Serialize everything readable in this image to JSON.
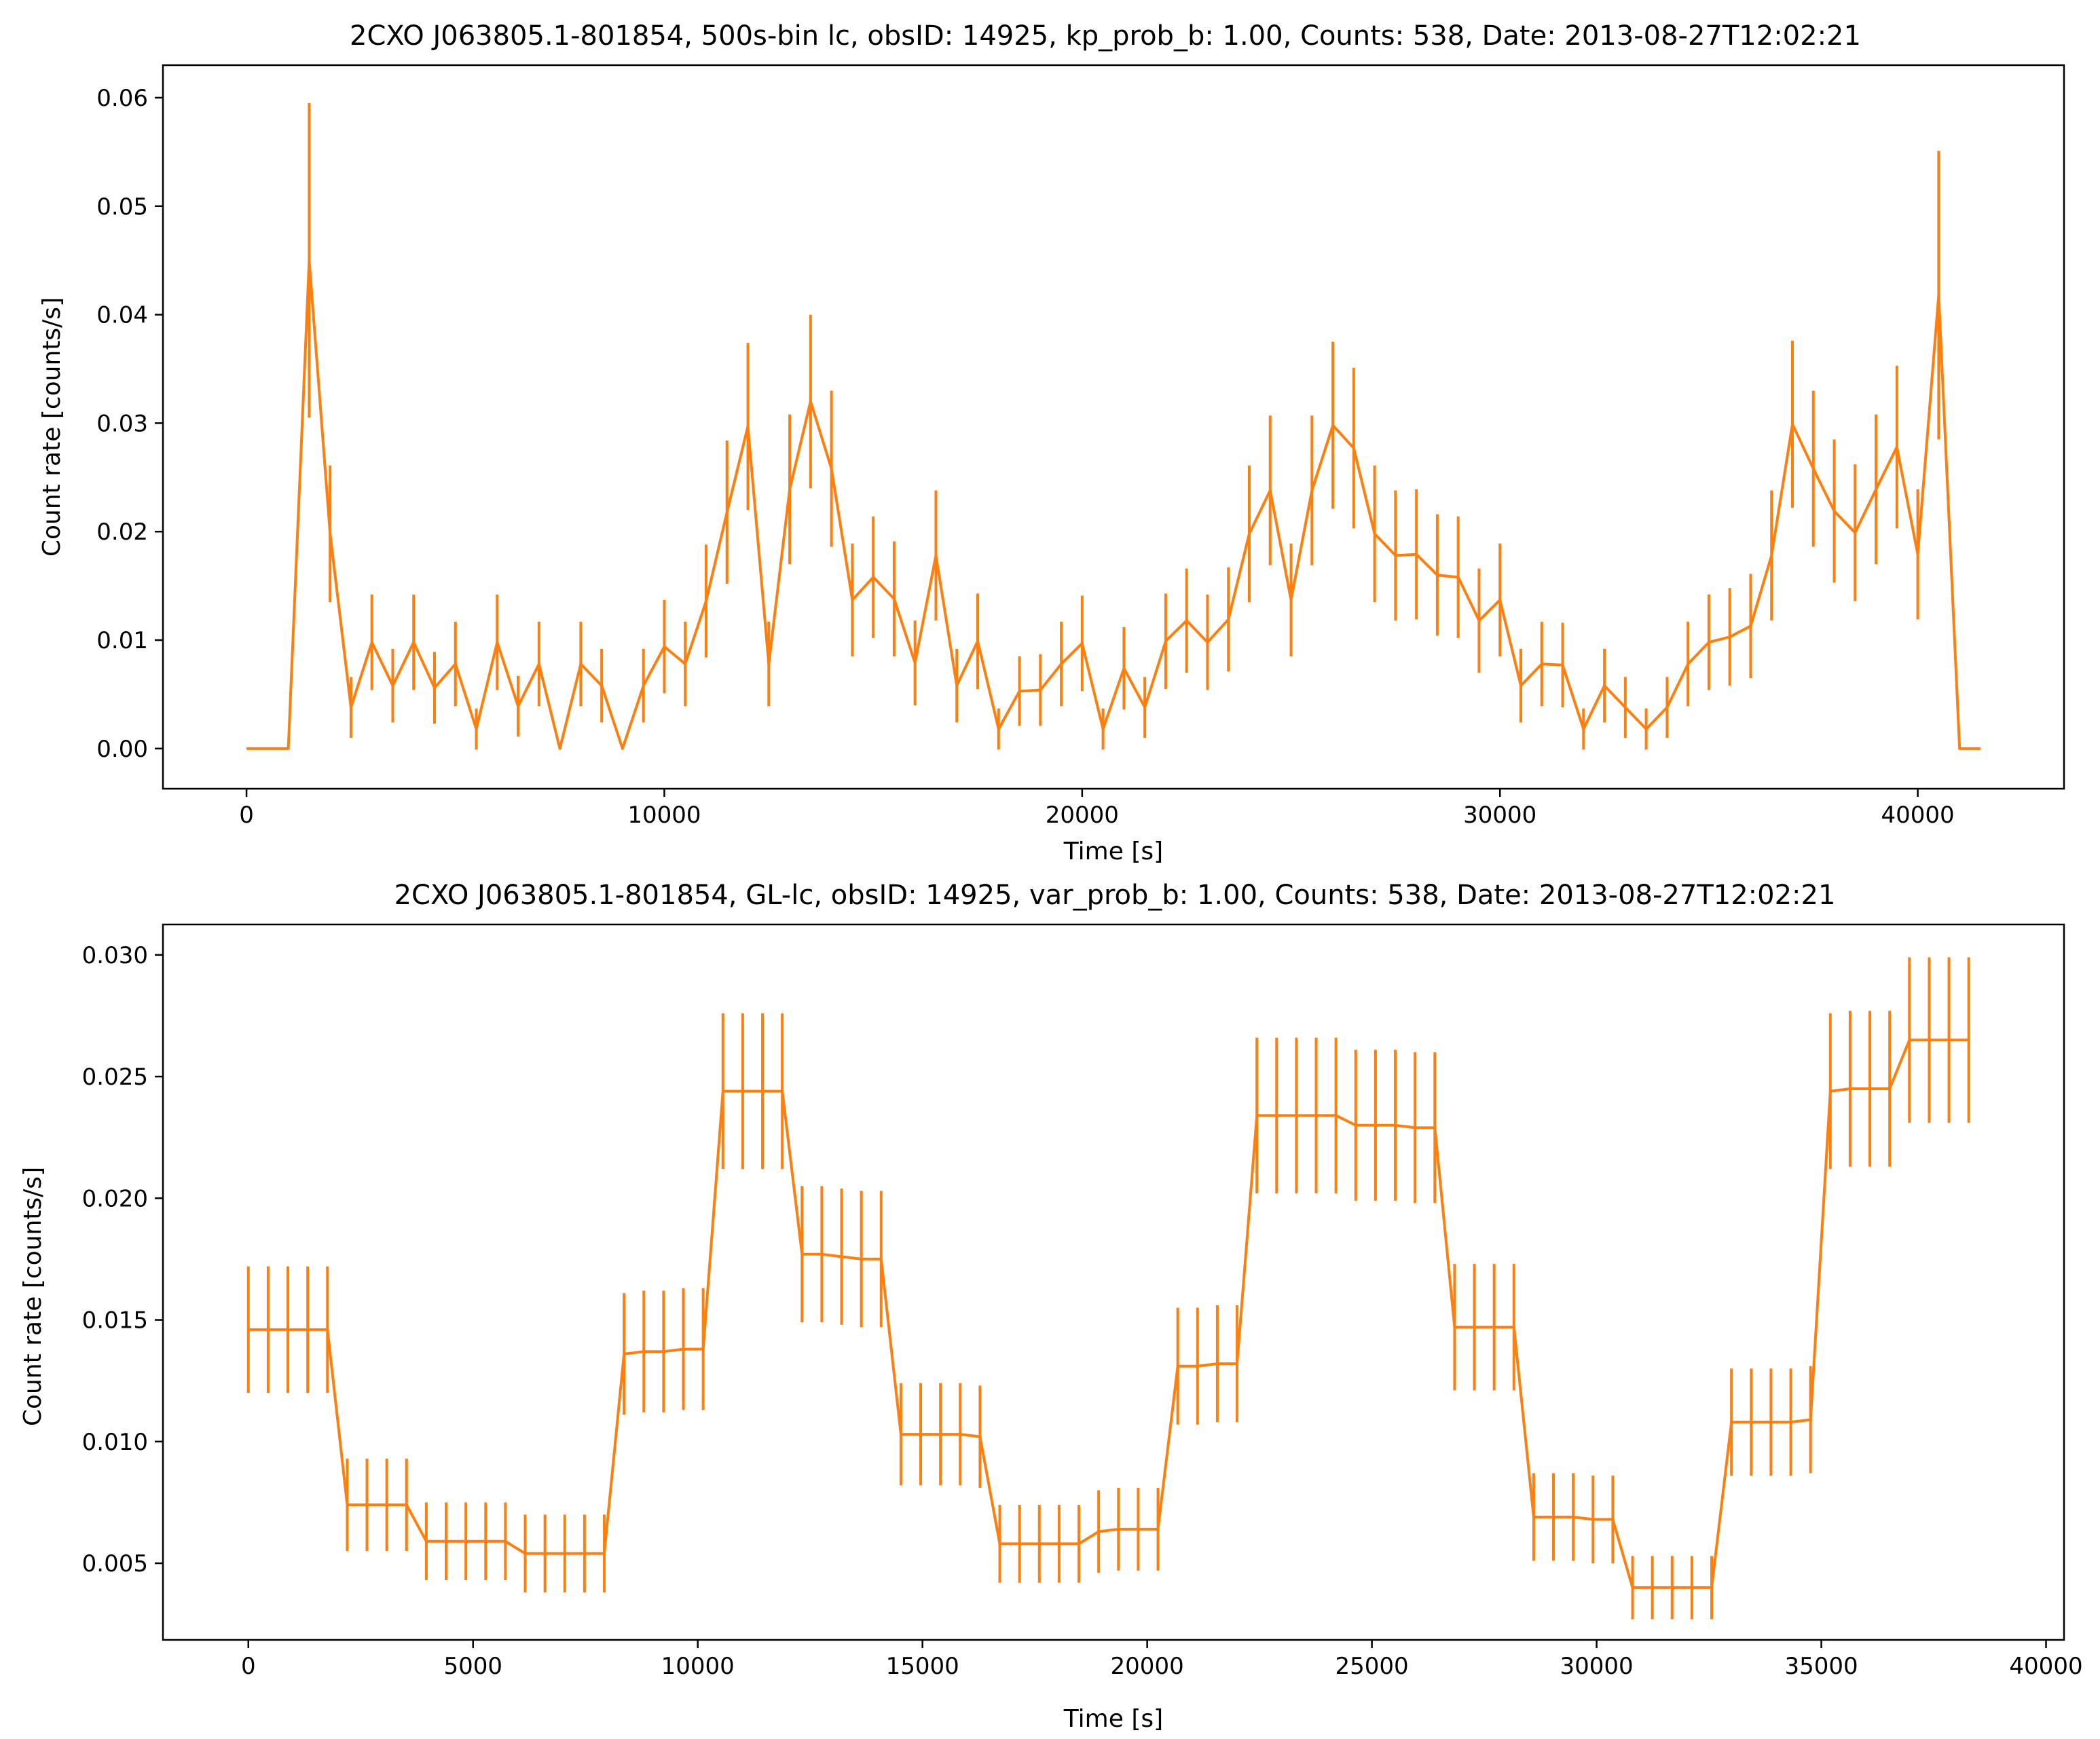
{
  "colors": {
    "series": "#ff7f0e",
    "axis": "#000000",
    "background": "#ffffff"
  },
  "chart_data": [
    {
      "type": "line",
      "title": "2CXO J063805.1-801854, 500s-bin lc, obsID: 14925, kp_prob_b: 1.00, Counts: 538, Date: 2013-08-27T12:02:21",
      "xlabel": "Time [s]",
      "ylabel": "Count rate [counts/s]",
      "xlim": [
        -2000,
        43500
      ],
      "ylim": [
        -0.0037,
        0.063
      ],
      "xticks": [
        0,
        10000,
        20000,
        30000,
        40000
      ],
      "xtick_labels": [
        "0",
        "10000",
        "20000",
        "30000",
        "40000"
      ],
      "yticks": [
        0,
        0.01,
        0.02,
        0.03,
        0.04,
        0.05,
        0.06
      ],
      "ytick_labels": [
        "0.00",
        "0.01",
        "0.02",
        "0.03",
        "0.04",
        "0.05",
        "0.06"
      ],
      "grid": false,
      "series": [
        {
          "x": [
            0,
            1000,
            1500,
            2000,
            2500,
            3000,
            3500,
            4000,
            4500,
            5000,
            5500,
            6000,
            6500,
            7000,
            7500,
            8000,
            8500,
            9000,
            9500,
            10000,
            10500,
            11000,
            11500,
            12000,
            12500,
            13000,
            13500,
            14000,
            14500,
            15000,
            15500,
            16000,
            16500,
            17000,
            17500,
            18000,
            18500,
            19000,
            19500,
            20000,
            20500,
            21000,
            21500,
            22000,
            22500,
            23000,
            23500,
            24000,
            24500,
            25000,
            25500,
            26000,
            26500,
            27000,
            27500,
            28000,
            28500,
            29000,
            29500,
            30000,
            30500,
            31000,
            31500,
            32000,
            32500,
            33000,
            33500,
            34000,
            34500,
            35000,
            35500,
            36000,
            36500,
            37000,
            37500,
            38000,
            38500,
            39000,
            39500,
            40000,
            40500,
            41000,
            41500
          ],
          "y": [
            0,
            0,
            0.045,
            0.0198,
            0.0038,
            0.0098,
            0.0058,
            0.0098,
            0.0056,
            0.0078,
            0.0018,
            0.0098,
            0.0039,
            0.0078,
            0,
            0.0078,
            0.0058,
            0,
            0.0058,
            0.0094,
            0.0078,
            0.0136,
            0.0218,
            0.0297,
            0.0078,
            0.0239,
            0.032,
            0.0258,
            0.0137,
            0.0158,
            0.0138,
            0.0079,
            0.0178,
            0.0058,
            0.0099,
            0.0018,
            0.0053,
            0.0054,
            0.0078,
            0.0097,
            0.0018,
            0.0074,
            0.0038,
            0.0099,
            0.0118,
            0.0098,
            0.0119,
            0.0198,
            0.0238,
            0.0137,
            0.0238,
            0.0298,
            0.0277,
            0.0198,
            0.0178,
            0.0179,
            0.016,
            0.0158,
            0.0118,
            0.0137,
            0.0058,
            0.0078,
            0.0077,
            0.0018,
            0.0058,
            0.0038,
            0.0018,
            0.0038,
            0.0078,
            0.0098,
            0.0103,
            0.0113,
            0.0178,
            0.0299,
            0.0258,
            0.0219,
            0.0199,
            0.0239,
            0.0278,
            0.0179,
            0.0418,
            0,
            0
          ],
          "err": [
            0,
            0,
            0.0145,
            0.0063,
            0.0028,
            0.0044,
            0.0034,
            0.0044,
            0.0033,
            0.0039,
            0.0019,
            0.0044,
            0.0028,
            0.0039,
            0,
            0.0039,
            0.0034,
            0,
            0.0034,
            0.0043,
            0.0039,
            0.0052,
            0.0066,
            0.0077,
            0.0039,
            0.0069,
            0.008,
            0.0072,
            0.0052,
            0.0056,
            0.0053,
            0.0039,
            0.006,
            0.0034,
            0.0044,
            0.0019,
            0.0032,
            0.0033,
            0.0039,
            0.0044,
            0.0019,
            0.0038,
            0.0028,
            0.0044,
            0.0048,
            0.0044,
            0.0048,
            0.0063,
            0.0069,
            0.0052,
            0.0069,
            0.0077,
            0.0074,
            0.0063,
            0.006,
            0.006,
            0.0056,
            0.0056,
            0.0048,
            0.0052,
            0.0034,
            0.0039,
            0.0039,
            0.0019,
            0.0034,
            0.0028,
            0.0019,
            0.0028,
            0.0039,
            0.0044,
            0.0045,
            0.0048,
            0.006,
            0.0077,
            0.0072,
            0.0066,
            0.0063,
            0.0069,
            0.0075,
            0.006,
            0.0133,
            0,
            0
          ]
        }
      ]
    },
    {
      "type": "line",
      "title": "2CXO J063805.1-801854, GL-lc, obsID: 14925, var_prob_b: 1.00, Counts: 538, Date: 2013-08-27T12:02:21",
      "xlabel": "Time [s]",
      "ylabel": "Count rate [counts/s]",
      "xlim": [
        -1900,
        40400
      ],
      "ylim": [
        0.00185,
        0.03125
      ],
      "xticks": [
        0,
        5000,
        10000,
        15000,
        20000,
        25000,
        30000,
        35000,
        40000
      ],
      "xtick_labels": [
        "0",
        "5000",
        "10000",
        "15000",
        "20000",
        "25000",
        "30000",
        "35000",
        "40000"
      ],
      "yticks": [
        0.005,
        0.01,
        0.015,
        0.02,
        0.025,
        0.03
      ],
      "ytick_labels": [
        "0.005",
        "0.010",
        "0.015",
        "0.020",
        "0.025",
        "0.030"
      ],
      "grid": false,
      "series": [
        {
          "x": [
            0,
            440,
            880,
            1320,
            1760,
            2200,
            2640,
            3080,
            3520,
            3960,
            4400,
            4840,
            5280,
            5720,
            6160,
            6600,
            7040,
            7480,
            7920,
            8360,
            8800,
            9240,
            9680,
            10120,
            10560,
            11000,
            11440,
            11880,
            12320,
            12760,
            13200,
            13640,
            14080,
            14520,
            14960,
            15400,
            15840,
            16280,
            16720,
            17160,
            17600,
            18040,
            18480,
            18920,
            19360,
            19800,
            20240,
            20680,
            21120,
            21560,
            22000,
            22440,
            22880,
            23320,
            23760,
            24200,
            24640,
            25080,
            25520,
            25960,
            26400,
            26840,
            27280,
            27720,
            28160,
            28600,
            29040,
            29480,
            29920,
            30360,
            30800,
            31240,
            31680,
            32120,
            32560,
            33000,
            33440,
            33880,
            34320,
            34760,
            35200,
            35640,
            36080,
            36520,
            36960,
            37400,
            37840,
            38280
          ],
          "y": [
            0.0146,
            0.0146,
            0.0146,
            0.0146,
            0.0146,
            0.0074,
            0.0074,
            0.0074,
            0.0074,
            0.0059,
            0.0059,
            0.0059,
            0.0059,
            0.0059,
            0.0054,
            0.0054,
            0.0054,
            0.0054,
            0.0054,
            0.0136,
            0.0137,
            0.0137,
            0.0138,
            0.0138,
            0.0244,
            0.0244,
            0.0244,
            0.0244,
            0.0177,
            0.0177,
            0.0176,
            0.0175,
            0.0175,
            0.0103,
            0.0103,
            0.0103,
            0.0103,
            0.0102,
            0.0058,
            0.0058,
            0.0058,
            0.0058,
            0.0058,
            0.0063,
            0.0064,
            0.0064,
            0.0064,
            0.0131,
            0.0131,
            0.0132,
            0.0132,
            0.0234,
            0.0234,
            0.0234,
            0.0234,
            0.0234,
            0.023,
            0.023,
            0.023,
            0.0229,
            0.0229,
            0.0147,
            0.0147,
            0.0147,
            0.0147,
            0.0069,
            0.0069,
            0.0069,
            0.0068,
            0.0068,
            0.004,
            0.004,
            0.004,
            0.004,
            0.004,
            0.0108,
            0.0108,
            0.0108,
            0.0108,
            0.0109,
            0.0244,
            0.0245,
            0.0245,
            0.0245,
            0.0265,
            0.0265,
            0.0265,
            0.0265
          ],
          "err": [
            0.0026,
            0.0026,
            0.0026,
            0.0026,
            0.0026,
            0.0019,
            0.0019,
            0.0019,
            0.0019,
            0.0016,
            0.0016,
            0.0016,
            0.0016,
            0.0016,
            0.0016,
            0.0016,
            0.0016,
            0.0016,
            0.0016,
            0.0025,
            0.0025,
            0.0025,
            0.0025,
            0.0025,
            0.0032,
            0.0032,
            0.0032,
            0.0032,
            0.0028,
            0.0028,
            0.0028,
            0.0028,
            0.0028,
            0.0021,
            0.0021,
            0.0021,
            0.0021,
            0.0021,
            0.0016,
            0.0016,
            0.0016,
            0.0016,
            0.0016,
            0.0017,
            0.0017,
            0.0017,
            0.0017,
            0.0024,
            0.0024,
            0.0024,
            0.0024,
            0.0032,
            0.0032,
            0.0032,
            0.0032,
            0.0032,
            0.0031,
            0.0031,
            0.0031,
            0.0031,
            0.0031,
            0.0026,
            0.0026,
            0.0026,
            0.0026,
            0.0018,
            0.0018,
            0.0018,
            0.0018,
            0.0018,
            0.0013,
            0.0013,
            0.0013,
            0.0013,
            0.0013,
            0.0022,
            0.0022,
            0.0022,
            0.0022,
            0.0022,
            0.0032,
            0.0032,
            0.0032,
            0.0032,
            0.0034,
            0.0034,
            0.0034,
            0.0034
          ]
        }
      ]
    }
  ]
}
